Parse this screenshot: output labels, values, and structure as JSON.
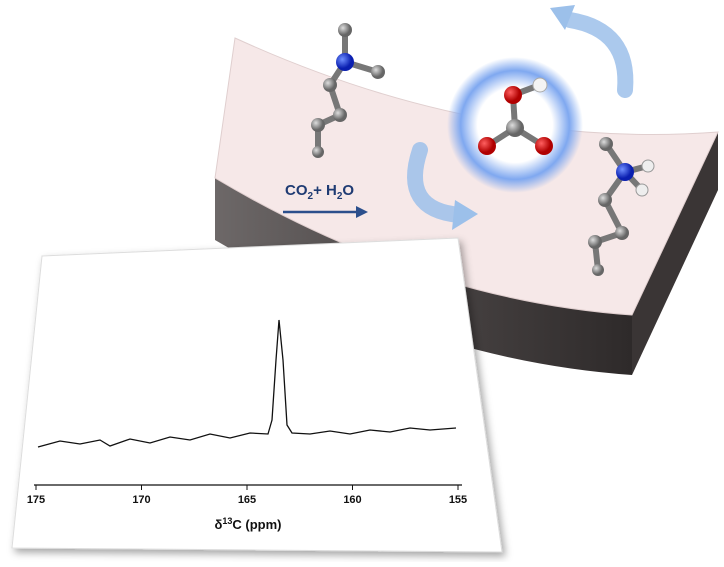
{
  "reaction": {
    "part1": "CO",
    "sub1": "2",
    "part2": "+ H",
    "sub2": "2",
    "part3": "O"
  },
  "spectrum": {
    "xlim": [
      175,
      155
    ],
    "xticks": [
      175,
      170,
      165,
      160,
      155
    ],
    "xlabel": {
      "symbol": "δ",
      "sup": "13",
      "rest": "C (ppm)"
    }
  }
}
